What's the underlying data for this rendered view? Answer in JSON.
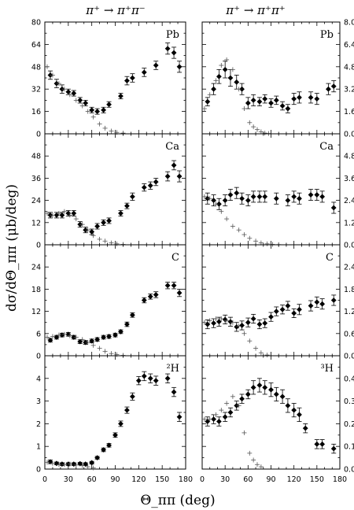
{
  "chart_data": {
    "type": "scatter",
    "xlabel": "Θ_ππ (deg)",
    "ylabel": "dσ/dΘ_ππ (μb/deg)",
    "column_titles": [
      "π⁺ → π⁺π⁻",
      "π⁺ → π⁺π⁺"
    ],
    "x_ticks": [
      "0",
      "30",
      "60",
      "90",
      "120",
      "150",
      "180"
    ],
    "xlim": [
      0,
      180
    ],
    "panels": [
      {
        "row": 0,
        "col": 0,
        "label": "Pb",
        "ylim": [
          0,
          80
        ],
        "yticks": [
          0,
          16,
          32,
          48,
          64,
          80
        ],
        "ytick_labels": [
          "0",
          "16",
          "32",
          "48",
          "64",
          "80"
        ],
        "ytick_side": "left",
        "series": [
          {
            "marker": "diamond",
            "x": [
              7,
              15,
              22,
              30,
              37,
              45,
              52,
              60,
              67,
              75,
              82,
              97,
              105,
              112,
              127,
              142,
              157,
              165,
              172
            ],
            "y": [
              42,
              36,
              32,
              30,
              29,
              24,
              22,
              17,
              16,
              17,
              21,
              27,
              38,
              40,
              44,
              49,
              61,
              58,
              48
            ],
            "err": [
              3,
              3,
              3,
              2,
              2,
              2,
              2,
              2,
              2,
              2,
              2,
              2,
              3,
              3,
              3,
              3,
              4,
              4,
              4
            ]
          },
          {
            "marker": "cross",
            "x": [
              3,
              10,
              18,
              25,
              32,
              40,
              48,
              55,
              62,
              70,
              77,
              85,
              92,
              100
            ],
            "y": [
              48,
              42,
              36,
              32,
              28,
              24,
              20,
              16,
              12,
              7,
              4,
              2,
              1,
              0.5
            ]
          }
        ]
      },
      {
        "row": 0,
        "col": 1,
        "label": "Pb",
        "ylim": [
          0,
          8
        ],
        "yticks": [
          0,
          1.6,
          3.2,
          4.8,
          6.4,
          8.0
        ],
        "ytick_labels": [
          "0.0",
          "1.6",
          "3.2",
          "4.8",
          "6.4",
          "8.0"
        ],
        "ytick_side": "right",
        "series": [
          {
            "marker": "diamond",
            "x": [
              7,
              15,
              22,
              30,
              37,
              45,
              52,
              60,
              67,
              75,
              82,
              90,
              97,
              105,
              112,
              120,
              127,
              142,
              150,
              165,
              172
            ],
            "y": [
              2.3,
              3.2,
              4.1,
              4.6,
              4.0,
              3.7,
              3.2,
              2.2,
              2.4,
              2.3,
              2.5,
              2.2,
              2.4,
              2.0,
              1.8,
              2.5,
              2.6,
              2.6,
              2.5,
              3.2,
              3.4
            ],
            "err": [
              0.3,
              0.4,
              0.5,
              0.6,
              0.6,
              0.5,
              0.4,
              0.4,
              0.4,
              0.3,
              0.3,
              0.3,
              0.3,
              0.3,
              0.3,
              0.4,
              0.4,
              0.4,
              0.4,
              0.4,
              0.4
            ]
          },
          {
            "marker": "cross",
            "x": [
              3,
              10,
              18,
              25,
              32,
              40,
              48,
              55,
              62,
              67,
              72,
              77,
              82,
              87
            ],
            "y": [
              1.8,
              2.8,
              3.8,
              4.9,
              5.3,
              4.6,
              3.2,
              1.8,
              0.8,
              0.5,
              0.3,
              0.15,
              0.05,
              0.02
            ]
          }
        ]
      },
      {
        "row": 1,
        "col": 0,
        "label": "Ca",
        "ylim": [
          0,
          60
        ],
        "yticks": [
          0,
          12,
          24,
          36,
          48
        ],
        "ytick_labels": [
          "0",
          "12",
          "24",
          "36",
          "48"
        ],
        "ytick_side": "left",
        "series": [
          {
            "marker": "diamond",
            "x": [
              7,
              15,
              22,
              30,
              37,
              45,
              52,
              60,
              67,
              75,
              82,
              97,
              105,
              112,
              127,
              135,
              142,
              157,
              165,
              172
            ],
            "y": [
              16,
              16,
              16,
              17,
              17,
              11,
              8,
              7,
              10,
              12,
              13,
              17,
              21,
              26,
              31,
              32,
              34,
              37,
              43,
              37
            ],
            "err": [
              1.5,
              1.5,
              1.5,
              1.5,
              1.5,
              1.5,
              1.5,
              1.5,
              1.5,
              1.5,
              1.5,
              1.5,
              1.5,
              2,
              2,
              2,
              2,
              2.5,
              2.5,
              3
            ]
          },
          {
            "marker": "cross",
            "x": [
              3,
              10,
              18,
              25,
              32,
              40,
              48,
              55,
              62,
              70,
              77,
              85,
              92,
              100
            ],
            "y": [
              17,
              16,
              17,
              18,
              16,
              14,
              11,
              8,
              5,
              3,
              2,
              1,
              0.5,
              0.2
            ]
          }
        ]
      },
      {
        "row": 1,
        "col": 1,
        "label": "Ca",
        "ylim": [
          0,
          6
        ],
        "yticks": [
          0,
          1.2,
          2.4,
          3.6,
          4.8
        ],
        "ytick_labels": [
          "0.0",
          "1.2",
          "2.4",
          "3.6",
          "4.8"
        ],
        "ytick_side": "right",
        "series": [
          {
            "marker": "diamond",
            "x": [
              7,
              15,
              22,
              30,
              37,
              45,
              52,
              60,
              67,
              75,
              82,
              97,
              112,
              120,
              127,
              142,
              150,
              157,
              172
            ],
            "y": [
              2.5,
              2.4,
              2.2,
              2.4,
              2.7,
              2.8,
              2.5,
              2.4,
              2.6,
              2.6,
              2.6,
              2.5,
              2.4,
              2.6,
              2.5,
              2.7,
              2.7,
              2.6,
              2.0
            ],
            "err": [
              0.3,
              0.3,
              0.3,
              0.3,
              0.3,
              0.3,
              0.3,
              0.3,
              0.3,
              0.3,
              0.3,
              0.3,
              0.3,
              0.3,
              0.3,
              0.3,
              0.3,
              0.3,
              0.3
            ]
          },
          {
            "marker": "cross",
            "x": [
              3,
              10,
              18,
              25,
              32,
              40,
              48,
              55,
              62,
              70,
              77,
              85,
              92,
              100
            ],
            "y": [
              2.6,
              2.5,
              2.2,
              1.8,
              1.4,
              1.0,
              0.8,
              0.55,
              0.35,
              0.2,
              0.1,
              0.05,
              0.02,
              0.01
            ]
          }
        ]
      },
      {
        "row": 2,
        "col": 0,
        "label": "C",
        "ylim": [
          0,
          30
        ],
        "yticks": [
          0,
          6,
          12,
          18,
          24
        ],
        "ytick_labels": [
          "0",
          "6",
          "12",
          "18",
          "24"
        ],
        "ytick_side": "left",
        "series": [
          {
            "marker": "diamond",
            "x": [
              7,
              15,
              22,
              30,
              37,
              45,
              52,
              60,
              67,
              75,
              82,
              90,
              97,
              105,
              112,
              127,
              135,
              142,
              157,
              165,
              172
            ],
            "y": [
              4.2,
              5.0,
              5.6,
              5.8,
              5.0,
              3.8,
              3.6,
              4.0,
              4.4,
              5.0,
              5.2,
              5.6,
              6.5,
              8.5,
              11,
              15,
              16,
              16.5,
              19,
              19,
              17
            ],
            "err": [
              0.5,
              0.5,
              0.5,
              0.5,
              0.5,
              0.5,
              0.5,
              0.5,
              0.5,
              0.5,
              0.5,
              0.5,
              0.5,
              0.6,
              0.6,
              0.7,
              0.7,
              0.8,
              0.9,
              0.9,
              1
            ]
          },
          {
            "marker": "cross",
            "x": [
              3,
              10,
              18,
              25,
              32,
              40,
              48,
              55,
              62,
              70,
              77,
              85,
              92,
              100
            ],
            "y": [
              5.0,
              5.2,
              5.6,
              5.8,
              5.4,
              5.0,
              4.4,
              3.6,
              2.8,
              2.0,
              1.2,
              0.6,
              0.3,
              0.1
            ]
          }
        ]
      },
      {
        "row": 2,
        "col": 1,
        "label": "C",
        "ylim": [
          0,
          3
        ],
        "yticks": [
          0,
          0.6,
          1.2,
          1.8,
          2.4
        ],
        "ytick_labels": [
          "0.0",
          "0.6",
          "1.2",
          "1.8",
          "2.4"
        ],
        "ytick_side": "right",
        "series": [
          {
            "marker": "diamond",
            "x": [
              7,
              15,
              22,
              30,
              37,
              45,
              52,
              60,
              67,
              75,
              82,
              90,
              97,
              105,
              112,
              120,
              127,
              142,
              150,
              157,
              172
            ],
            "y": [
              0.85,
              0.88,
              0.92,
              0.98,
              0.92,
              0.78,
              0.82,
              0.9,
              1.0,
              0.85,
              0.88,
              1.05,
              1.2,
              1.25,
              1.35,
              1.15,
              1.25,
              1.35,
              1.45,
              1.4,
              1.5
            ],
            "err": [
              0.12,
              0.12,
              0.12,
              0.12,
              0.12,
              0.12,
              0.12,
              0.12,
              0.12,
              0.12,
              0.12,
              0.12,
              0.12,
              0.12,
              0.12,
              0.12,
              0.14,
              0.14,
              0.14,
              0.14,
              0.14
            ]
          },
          {
            "marker": "cross",
            "x": [
              3,
              10,
              18,
              25,
              32,
              40,
              48,
              55,
              62,
              70,
              77,
              85
            ],
            "y": [
              0.9,
              0.95,
              1.0,
              1.0,
              0.95,
              0.9,
              0.8,
              0.6,
              0.4,
              0.2,
              0.08,
              0.02
            ]
          }
        ]
      },
      {
        "row": 3,
        "col": 0,
        "label": "²H",
        "ylim": [
          0,
          5
        ],
        "yticks": [
          0,
          1,
          2,
          3,
          4
        ],
        "ytick_labels": [
          "0",
          "1",
          "2",
          "3",
          "4"
        ],
        "ytick_side": "left",
        "series": [
          {
            "marker": "diamond",
            "x": [
              7,
              15,
              22,
              30,
              37,
              45,
              52,
              60,
              67,
              75,
              82,
              90,
              97,
              105,
              112,
              120,
              127,
              135,
              142,
              157,
              165,
              172
            ],
            "y": [
              0.32,
              0.25,
              0.22,
              0.22,
              0.22,
              0.24,
              0.22,
              0.28,
              0.5,
              0.85,
              1.05,
              1.5,
              2.0,
              2.6,
              3.2,
              3.9,
              4.1,
              4.0,
              3.9,
              4.0,
              3.4,
              2.3
            ],
            "err": [
              0.08,
              0.06,
              0.06,
              0.06,
              0.06,
              0.06,
              0.06,
              0.06,
              0.06,
              0.08,
              0.08,
              0.1,
              0.12,
              0.14,
              0.16,
              0.18,
              0.2,
              0.2,
              0.2,
              0.2,
              0.2,
              0.2
            ]
          },
          {
            "marker": "cross",
            "x": [
              3,
              10,
              18,
              25,
              32,
              40,
              48,
              55,
              62
            ],
            "y": [
              0.3,
              0.25,
              0.2,
              0.2,
              0.22,
              0.18,
              0.15,
              0.1,
              0.05
            ]
          }
        ]
      },
      {
        "row": 3,
        "col": 1,
        "label": "³H",
        "ylim": [
          0,
          0.5
        ],
        "yticks": [
          0,
          0.1,
          0.2,
          0.3,
          0.4
        ],
        "ytick_labels": [
          "0.0",
          "0.1",
          "0.2",
          "0.3",
          "0.4"
        ],
        "ytick_side": "right",
        "series": [
          {
            "marker": "diamond",
            "x": [
              7,
              15,
              22,
              30,
              37,
              45,
              52,
              60,
              67,
              75,
              82,
              90,
              97,
              105,
              112,
              120,
              127,
              135,
              150,
              157,
              172
            ],
            "y": [
              0.21,
              0.22,
              0.21,
              0.23,
              0.25,
              0.28,
              0.31,
              0.33,
              0.36,
              0.37,
              0.36,
              0.35,
              0.33,
              0.32,
              0.28,
              0.26,
              0.24,
              0.18,
              0.11,
              0.11,
              0.09
            ],
            "err": [
              0.02,
              0.02,
              0.02,
              0.02,
              0.02,
              0.02,
              0.02,
              0.02,
              0.03,
              0.03,
              0.03,
              0.03,
              0.03,
              0.03,
              0.03,
              0.03,
              0.03,
              0.02,
              0.02,
              0.02,
              0.02
            ]
          },
          {
            "marker": "cross",
            "x": [
              3,
              10,
              18,
              25,
              32,
              40,
              48,
              55,
              62,
              67,
              72,
              77
            ],
            "y": [
              0.22,
              0.22,
              0.24,
              0.26,
              0.29,
              0.32,
              0.28,
              0.16,
              0.07,
              0.04,
              0.02,
              0.01
            ]
          }
        ]
      }
    ]
  }
}
